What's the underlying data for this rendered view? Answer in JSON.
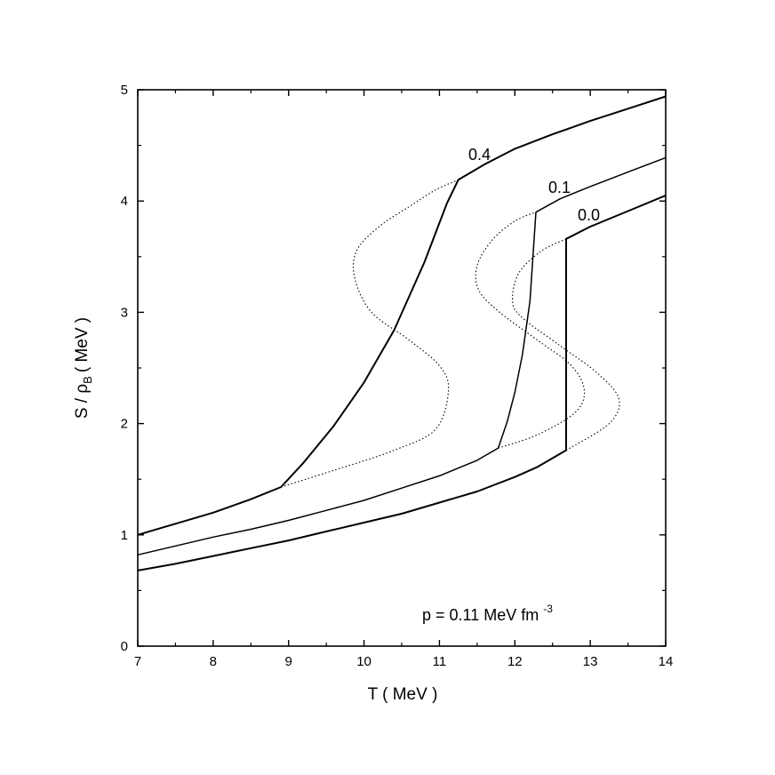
{
  "chart_data": {
    "type": "line",
    "xlabel": "T ( MeV )",
    "ylabel": {
      "main": "S / ρ",
      "sub": "B",
      "unit": "( MeV )"
    },
    "xlim": [
      7,
      14
    ],
    "ylim": [
      0,
      5
    ],
    "xticks": [
      "7",
      "8",
      "9",
      "10",
      "11",
      "12",
      "13",
      "14"
    ],
    "yticks": [
      "0",
      "1",
      "2",
      "3",
      "4",
      "5"
    ],
    "annotation": {
      "text": "p = 0.11 MeV fm",
      "sup": "-3"
    },
    "series": [
      {
        "name": "0.4",
        "style": "solid",
        "x": [
          7.0,
          7.5,
          8.0,
          8.5,
          8.9,
          9.2,
          9.6,
          10.0,
          10.4,
          10.8,
          11.1,
          11.25,
          11.6,
          12.0,
          12.5,
          13.0,
          13.5,
          14.0
        ],
        "y": [
          1.0,
          1.1,
          1.2,
          1.32,
          1.43,
          1.65,
          1.98,
          2.37,
          2.84,
          3.45,
          3.98,
          4.19,
          4.33,
          4.47,
          4.6,
          4.72,
          4.83,
          4.94
        ]
      },
      {
        "name": "0.1",
        "style": "solid",
        "x": [
          7.0,
          7.5,
          8.0,
          8.5,
          9.0,
          9.5,
          10.0,
          10.5,
          11.0,
          11.5,
          11.78,
          11.9,
          12.0,
          12.1,
          12.2,
          12.28,
          12.6,
          13.0,
          13.5,
          14.0
        ],
        "y": [
          0.82,
          0.9,
          0.98,
          1.05,
          1.13,
          1.22,
          1.31,
          1.42,
          1.53,
          1.67,
          1.78,
          2.02,
          2.28,
          2.62,
          3.1,
          3.9,
          4.02,
          4.13,
          4.26,
          4.39
        ]
      },
      {
        "name": "0.0",
        "style": "solid",
        "x": [
          7.0,
          7.5,
          8.0,
          8.5,
          9.0,
          9.5,
          10.0,
          10.5,
          11.0,
          11.5,
          12.0,
          12.3,
          12.68,
          12.68,
          13.0,
          13.5,
          14.0
        ],
        "y": [
          0.68,
          0.74,
          0.81,
          0.88,
          0.95,
          1.03,
          1.11,
          1.19,
          1.29,
          1.39,
          1.52,
          1.61,
          1.76,
          3.66,
          3.77,
          3.91,
          4.05
        ]
      },
      {
        "name": "",
        "style": "dotted",
        "x": [
          8.9,
          9.6,
          10.4,
          10.95,
          11.12,
          11.0,
          10.6,
          10.1,
          9.88,
          9.9,
          10.2,
          10.6,
          10.95,
          11.25
        ],
        "y": [
          1.43,
          1.58,
          1.76,
          1.95,
          2.3,
          2.52,
          2.75,
          3.0,
          3.3,
          3.55,
          3.77,
          3.95,
          4.1,
          4.19
        ]
      },
      {
        "name": "",
        "style": "dotted",
        "x": [
          11.78,
          12.3,
          12.8,
          12.92,
          12.75,
          12.3,
          11.8,
          11.52,
          11.5,
          11.7,
          12.0,
          12.28
        ],
        "y": [
          1.78,
          1.9,
          2.1,
          2.3,
          2.52,
          2.75,
          3.0,
          3.2,
          3.42,
          3.65,
          3.82,
          3.9
        ]
      },
      {
        "name": "",
        "style": "dotted",
        "x": [
          12.68,
          13.25,
          13.38,
          13.1,
          12.6,
          12.1,
          11.97,
          12.05,
          12.35,
          12.68
        ],
        "y": [
          1.76,
          2.0,
          2.22,
          2.45,
          2.7,
          2.95,
          3.1,
          3.35,
          3.55,
          3.66
        ]
      }
    ],
    "curve_labels": [
      "0.4",
      "0.1",
      "0.0"
    ]
  }
}
